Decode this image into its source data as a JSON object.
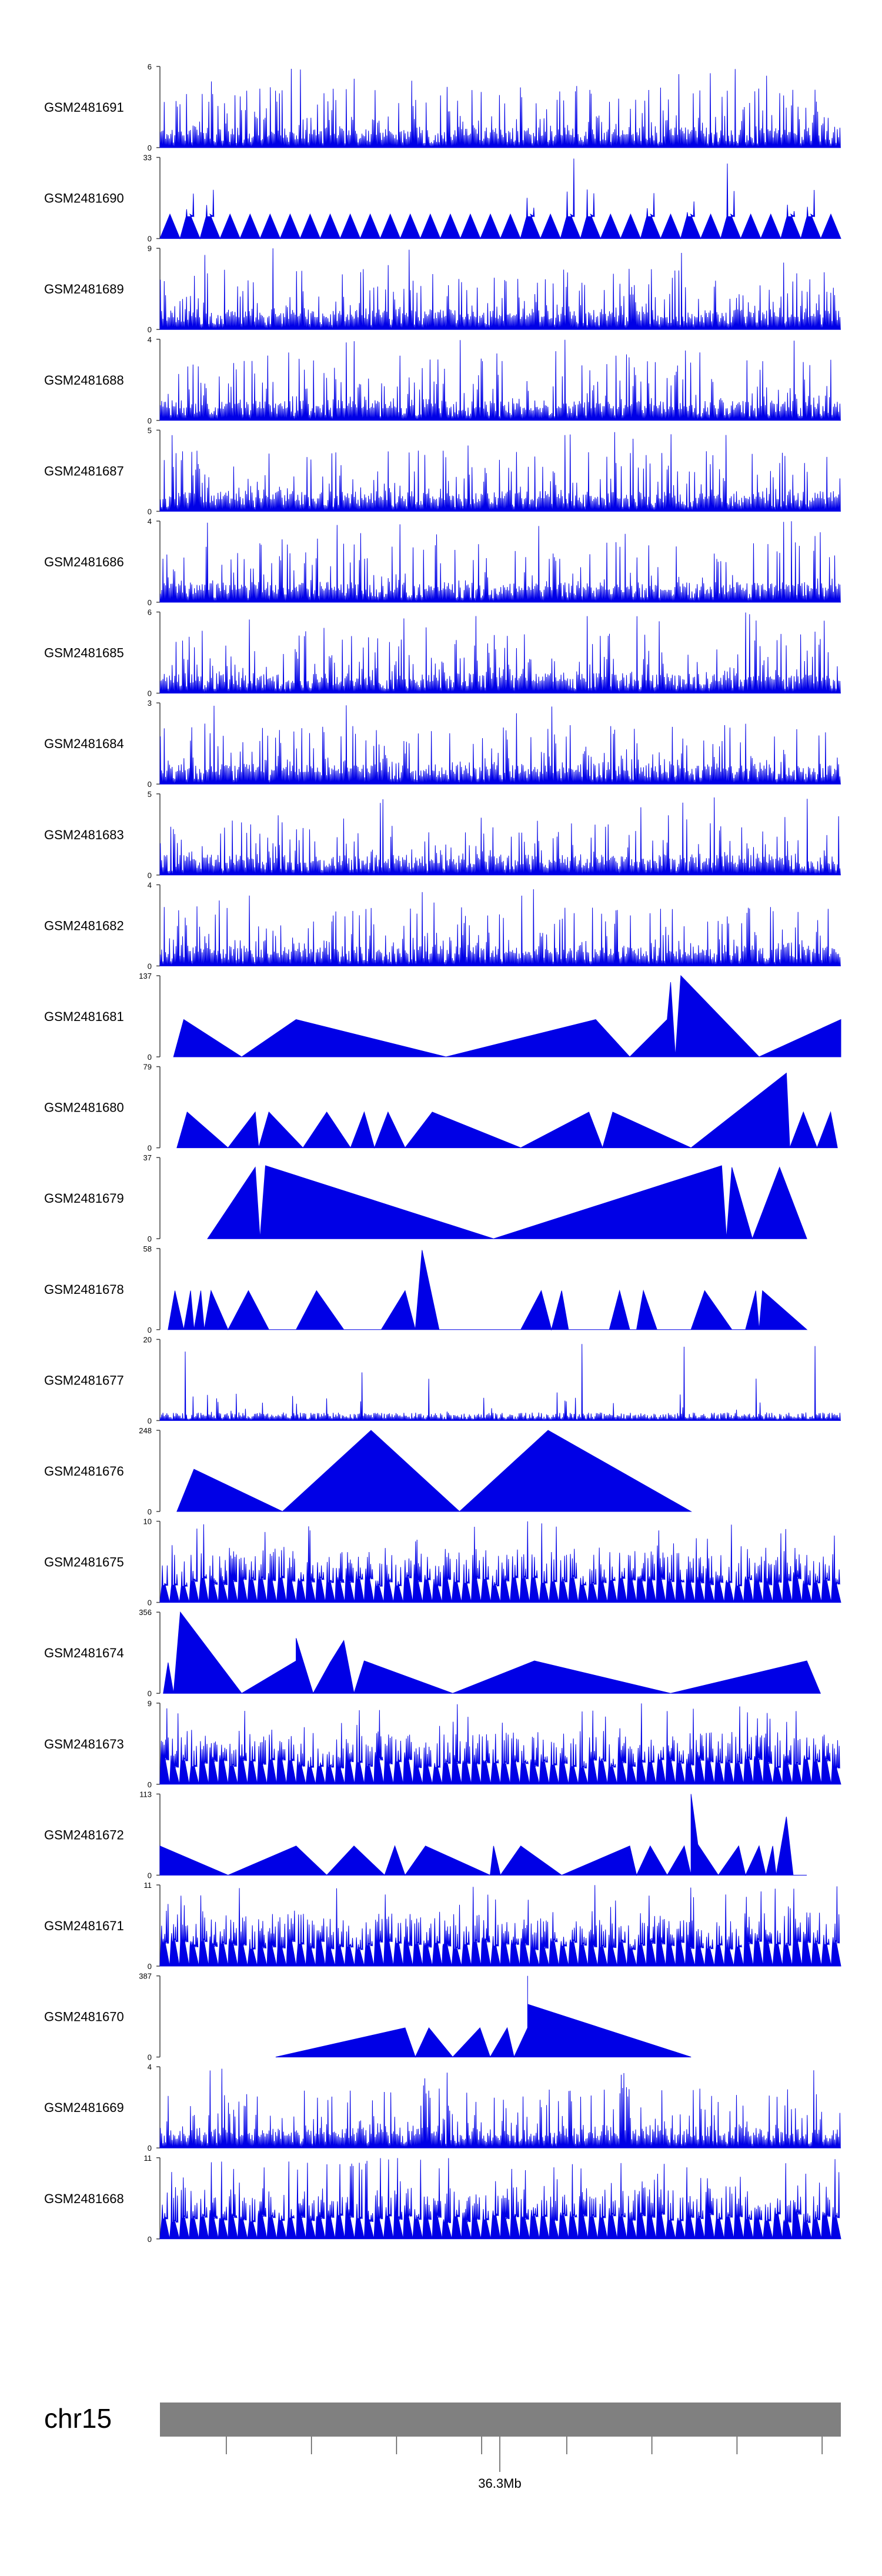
{
  "colors": {
    "signal": "#0000e6",
    "axis": "#444444",
    "text": "#000000",
    "ideogram": "#808080"
  },
  "chart_data": {
    "type": "area",
    "genome_track": {
      "chromosome": "chr15",
      "position_label": "36.3Mb",
      "tick_count": 8
    },
    "tracks": [
      {
        "sample": "GSM2481691",
        "ymax": 6,
        "pattern": "dense",
        "seed": 11
      },
      {
        "sample": "GSM2481690",
        "ymax": 33,
        "pattern": "sparse_spiky",
        "seed": 12
      },
      {
        "sample": "GSM2481689",
        "ymax": 9,
        "pattern": "dense",
        "seed": 13
      },
      {
        "sample": "GSM2481688",
        "ymax": 4,
        "pattern": "dense",
        "seed": 14
      },
      {
        "sample": "GSM2481687",
        "ymax": 5,
        "pattern": "dense",
        "seed": 15
      },
      {
        "sample": "GSM2481686",
        "ymax": 4,
        "pattern": "dense",
        "seed": 16
      },
      {
        "sample": "GSM2481685",
        "ymax": 6,
        "pattern": "dense",
        "seed": 17
      },
      {
        "sample": "GSM2481684",
        "ymax": 3,
        "pattern": "dense",
        "seed": 18
      },
      {
        "sample": "GSM2481683",
        "ymax": 5,
        "pattern": "dense",
        "seed": 19
      },
      {
        "sample": "GSM2481682",
        "ymax": 4,
        "pattern": "dense",
        "seed": 20
      },
      {
        "sample": "GSM2481681",
        "ymax": 137,
        "pattern": "peaks",
        "peaks": [
          [
            0.02,
            0.0
          ],
          [
            0.035,
            0.46
          ],
          [
            0.12,
            0.0
          ],
          [
            0.2,
            0.46
          ],
          [
            0.42,
            0.0
          ],
          [
            0.64,
            0.46
          ],
          [
            0.69,
            0.0
          ],
          [
            0.745,
            0.46
          ],
          [
            0.75,
            0.92
          ],
          [
            0.757,
            0.0
          ],
          [
            0.765,
            1.0
          ],
          [
            0.88,
            0.0
          ],
          [
            1.0,
            0.46
          ],
          [
            1.0,
            0.0
          ]
        ]
      },
      {
        "sample": "GSM2481680",
        "ymax": 79,
        "pattern": "peaks",
        "peaks": [
          [
            0.025,
            0.0
          ],
          [
            0.04,
            0.44
          ],
          [
            0.1,
            0.0
          ],
          [
            0.14,
            0.44
          ],
          [
            0.145,
            0.0
          ],
          [
            0.16,
            0.44
          ],
          [
            0.21,
            0.0
          ],
          [
            0.245,
            0.44
          ],
          [
            0.28,
            0.0
          ],
          [
            0.3,
            0.44
          ],
          [
            0.315,
            0.0
          ],
          [
            0.335,
            0.44
          ],
          [
            0.36,
            0.0
          ],
          [
            0.4,
            0.44
          ],
          [
            0.53,
            0.0
          ],
          [
            0.63,
            0.44
          ],
          [
            0.65,
            0.0
          ],
          [
            0.665,
            0.44
          ],
          [
            0.78,
            0.0
          ],
          [
            0.92,
            0.92
          ],
          [
            0.925,
            0.0
          ],
          [
            0.945,
            0.44
          ],
          [
            0.965,
            0.0
          ],
          [
            0.985,
            0.44
          ],
          [
            0.995,
            0.0
          ]
        ]
      },
      {
        "sample": "GSM2481679",
        "ymax": 37,
        "pattern": "peaks",
        "peaks": [
          [
            0.07,
            0.0
          ],
          [
            0.14,
            0.88
          ],
          [
            0.147,
            0.0
          ],
          [
            0.155,
            0.9
          ],
          [
            0.49,
            0.0
          ],
          [
            0.825,
            0.9
          ],
          [
            0.832,
            0.0
          ],
          [
            0.84,
            0.88
          ],
          [
            0.87,
            0.0
          ],
          [
            0.91,
            0.88
          ],
          [
            0.95,
            0.0
          ]
        ]
      },
      {
        "sample": "GSM2481678",
        "ymax": 58,
        "pattern": "peaks",
        "peaks": [
          [
            0.012,
            0.0
          ],
          [
            0.022,
            0.48
          ],
          [
            0.035,
            0.0
          ],
          [
            0.045,
            0.48
          ],
          [
            0.05,
            0.0
          ],
          [
            0.06,
            0.48
          ],
          [
            0.065,
            0.0
          ],
          [
            0.075,
            0.48
          ],
          [
            0.1,
            0.0
          ],
          [
            0.13,
            0.48
          ],
          [
            0.16,
            0.0
          ],
          [
            0.2,
            0.0
          ],
          [
            0.23,
            0.48
          ],
          [
            0.27,
            0.0
          ],
          [
            0.325,
            0.0
          ],
          [
            0.36,
            0.48
          ],
          [
            0.375,
            0.0
          ],
          [
            0.385,
            0.98
          ],
          [
            0.41,
            0.0
          ],
          [
            0.48,
            0.0
          ],
          [
            0.53,
            0.0
          ],
          [
            0.56,
            0.48
          ],
          [
            0.575,
            0.0
          ],
          [
            0.59,
            0.48
          ],
          [
            0.6,
            0.0
          ],
          [
            0.6,
            0.0
          ],
          [
            0.625,
            0.0
          ],
          [
            0.66,
            0.0
          ],
          [
            0.675,
            0.48
          ],
          [
            0.69,
            0.0
          ],
          [
            0.7,
            0.0
          ],
          [
            0.71,
            0.48
          ],
          [
            0.73,
            0.0
          ],
          [
            0.78,
            0.0
          ],
          [
            0.8,
            0.48
          ],
          [
            0.84,
            0.0
          ],
          [
            0.86,
            0.0
          ],
          [
            0.875,
            0.48
          ],
          [
            0.88,
            0.0
          ],
          [
            0.885,
            0.48
          ],
          [
            0.95,
            0.0
          ]
        ]
      },
      {
        "sample": "GSM2481677",
        "ymax": 20,
        "pattern": "sparse_dense",
        "seed": 21
      },
      {
        "sample": "GSM2481676",
        "ymax": 248,
        "pattern": "peaks",
        "peaks": [
          [
            0.025,
            0.0
          ],
          [
            0.05,
            0.52
          ],
          [
            0.18,
            0.0
          ],
          [
            0.31,
            1.0
          ],
          [
            0.44,
            0.0
          ],
          [
            0.57,
            1.0
          ],
          [
            0.78,
            0.0
          ]
        ]
      },
      {
        "sample": "GSM2481675",
        "ymax": 10,
        "pattern": "spiky_triangle",
        "seed": 22
      },
      {
        "sample": "GSM2481674",
        "ymax": 356,
        "pattern": "peaks",
        "peaks": [
          [
            0.005,
            0.0
          ],
          [
            0.012,
            0.38
          ],
          [
            0.02,
            0.0
          ],
          [
            0.03,
            1.0
          ],
          [
            0.12,
            0.0
          ],
          [
            0.2,
            0.4
          ],
          [
            0.2,
            0.68
          ],
          [
            0.225,
            0.0
          ],
          [
            0.25,
            0.38
          ],
          [
            0.27,
            0.65
          ],
          [
            0.285,
            0.0
          ],
          [
            0.3,
            0.4
          ],
          [
            0.43,
            0.0
          ],
          [
            0.55,
            0.4
          ],
          [
            0.75,
            0.0
          ],
          [
            0.95,
            0.4
          ],
          [
            0.97,
            0.0
          ]
        ]
      },
      {
        "sample": "GSM2481673",
        "ymax": 9,
        "pattern": "spiky_triangle",
        "seed": 23
      },
      {
        "sample": "GSM2481672",
        "ymax": 113,
        "pattern": "peaks",
        "peaks": [
          [
            0.0,
            0.0
          ],
          [
            0.0,
            0.36
          ],
          [
            0.1,
            0.0
          ],
          [
            0.2,
            0.36
          ],
          [
            0.245,
            0.0
          ],
          [
            0.285,
            0.36
          ],
          [
            0.33,
            0.0
          ],
          [
            0.345,
            0.36
          ],
          [
            0.36,
            0.0
          ],
          [
            0.39,
            0.36
          ],
          [
            0.485,
            0.0
          ],
          [
            0.49,
            0.36
          ],
          [
            0.5,
            0.0
          ],
          [
            0.53,
            0.36
          ],
          [
            0.59,
            0.0
          ],
          [
            0.69,
            0.36
          ],
          [
            0.7,
            0.0
          ],
          [
            0.72,
            0.36
          ],
          [
            0.745,
            0.0
          ],
          [
            0.77,
            0.36
          ],
          [
            0.78,
            0.0
          ],
          [
            0.78,
            1.0
          ],
          [
            0.79,
            0.38
          ],
          [
            0.82,
            0.0
          ],
          [
            0.85,
            0.36
          ],
          [
            0.86,
            0.0
          ],
          [
            0.88,
            0.36
          ],
          [
            0.89,
            0.0
          ],
          [
            0.9,
            0.36
          ],
          [
            0.905,
            0.0
          ],
          [
            0.92,
            0.72
          ],
          [
            0.93,
            0.0
          ],
          [
            0.95,
            0.0
          ]
        ]
      },
      {
        "sample": "GSM2481671",
        "ymax": 11,
        "pattern": "spiky_triangle",
        "seed": 24
      },
      {
        "sample": "GSM2481670",
        "ymax": 387,
        "pattern": "peaks",
        "peaks": [
          [
            0.17,
            0.0
          ],
          [
            0.36,
            0.36
          ],
          [
            0.375,
            0.0
          ],
          [
            0.395,
            0.36
          ],
          [
            0.43,
            0.0
          ],
          [
            0.47,
            0.36
          ],
          [
            0.485,
            0.0
          ],
          [
            0.51,
            0.36
          ],
          [
            0.52,
            0.0
          ],
          [
            0.54,
            0.36
          ],
          [
            0.54,
            1.0
          ],
          [
            0.54,
            0.65
          ],
          [
            0.78,
            0.0
          ]
        ]
      },
      {
        "sample": "GSM2481669",
        "ymax": 4,
        "pattern": "dense",
        "seed": 25
      },
      {
        "sample": "GSM2481668",
        "ymax": 11,
        "pattern": "spiky_triangle",
        "seed": 26
      }
    ]
  }
}
